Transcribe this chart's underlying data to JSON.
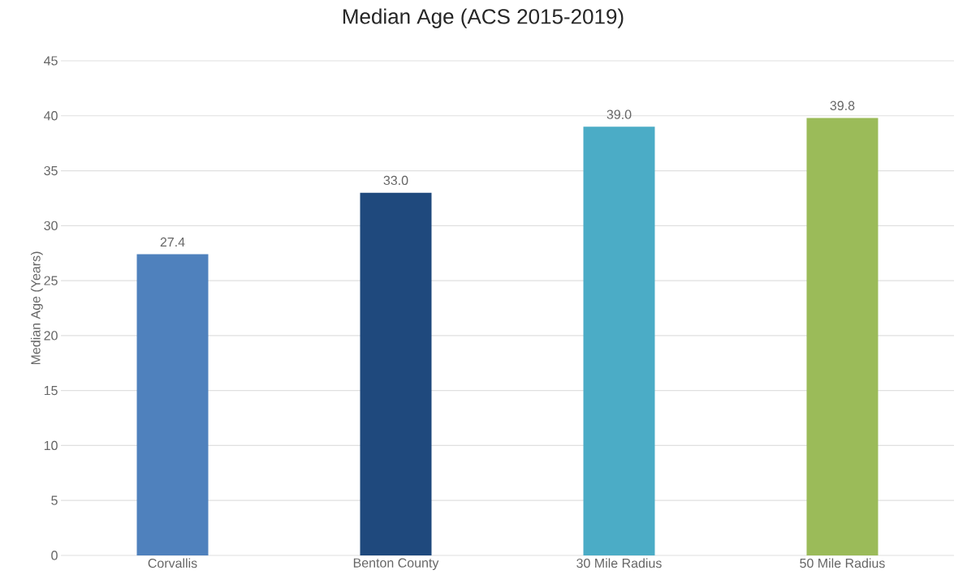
{
  "chart_data": {
    "type": "bar",
    "title": "Median Age (ACS 2015-2019)",
    "ylabel": "Median Age (Years)",
    "categories": [
      "Corvallis",
      "Benton County",
      "30 Mile Radius",
      "50 Mile Radius"
    ],
    "values": [
      27.4,
      33.0,
      39.0,
      39.8
    ],
    "colors": [
      "#4f81bd",
      "#1f497d",
      "#4bacc6",
      "#9bbb59"
    ],
    "ylim": [
      0,
      45
    ],
    "yticks": [
      0,
      5,
      10,
      15,
      20,
      25,
      30,
      35,
      40,
      45
    ],
    "value_labels": [
      "27.4",
      "33.0",
      "39.0",
      "39.8"
    ],
    "grid": "y"
  }
}
